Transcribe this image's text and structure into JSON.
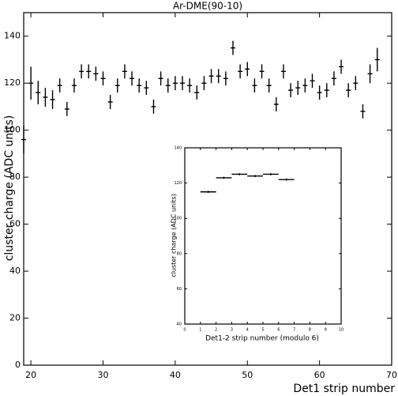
{
  "chart_data": [
    {
      "type": "errorbar",
      "title": "Ar-DME(90-10)",
      "x_label": "Det1 strip number",
      "y_label": "cluster charge (ADC units)",
      "x": [
        19,
        20,
        21,
        22,
        23,
        24,
        25,
        26,
        27,
        28,
        29,
        30,
        31,
        32,
        33,
        34,
        35,
        36,
        37,
        38,
        39,
        40,
        41,
        42,
        43,
        44,
        45,
        46,
        47,
        48,
        49,
        50,
        51,
        52,
        53,
        54,
        55,
        56,
        57,
        58,
        59,
        60,
        61,
        62,
        63,
        64,
        65,
        66,
        67,
        68
      ],
      "values": [
        96,
        120,
        116,
        114,
        113,
        119,
        109,
        119,
        125,
        125,
        124,
        122,
        112,
        119,
        125,
        122,
        119,
        118,
        110,
        122,
        119,
        120,
        120,
        119,
        116,
        120,
        123,
        123,
        122,
        135,
        125,
        126,
        119,
        125,
        119,
        111,
        125,
        117,
        118,
        119,
        121,
        116,
        117,
        122,
        127,
        117,
        120,
        108,
        124,
        130
      ],
      "errors": [
        6,
        7,
        5,
        4,
        4,
        3,
        3,
        3,
        3,
        3,
        3,
        3,
        3,
        3,
        3,
        3,
        3,
        3,
        3,
        3,
        3,
        3,
        3,
        3,
        3,
        3,
        3,
        3,
        3,
        3,
        3,
        3,
        3,
        3,
        3,
        3,
        3,
        3,
        3,
        3,
        3,
        3,
        3,
        3,
        3,
        3,
        3,
        3,
        4,
        5
      ],
      "color": "#000000",
      "xlim": [
        19,
        70
      ],
      "ylim": [
        0,
        150
      ],
      "xticks": [
        20,
        30,
        40,
        50,
        60,
        70
      ],
      "yticks": [
        0,
        20,
        40,
        60,
        80,
        100,
        120,
        140
      ]
    },
    {
      "type": "errorbar",
      "x_label": "Det1-2 strip number (modulo 6)",
      "y_label": "cluster charge (ADC units)",
      "x": [
        1.5,
        2.5,
        3.5,
        4.5,
        5.5,
        6.5
      ],
      "xerr": [
        0.5,
        0.5,
        0.5,
        0.5,
        0.5,
        0.5
      ],
      "values": [
        115,
        123,
        125,
        124,
        125,
        122
      ],
      "errors": [
        0.6,
        0.6,
        0.6,
        0.6,
        0.6,
        0.6
      ],
      "color": "#000000",
      "xlim": [
        0,
        10
      ],
      "ylim": [
        40,
        140
      ],
      "xticks": [
        0,
        1,
        2,
        3,
        4,
        5,
        6,
        7,
        8,
        9,
        10
      ],
      "yticks": [
        40,
        60,
        80,
        100,
        120,
        140
      ]
    }
  ]
}
